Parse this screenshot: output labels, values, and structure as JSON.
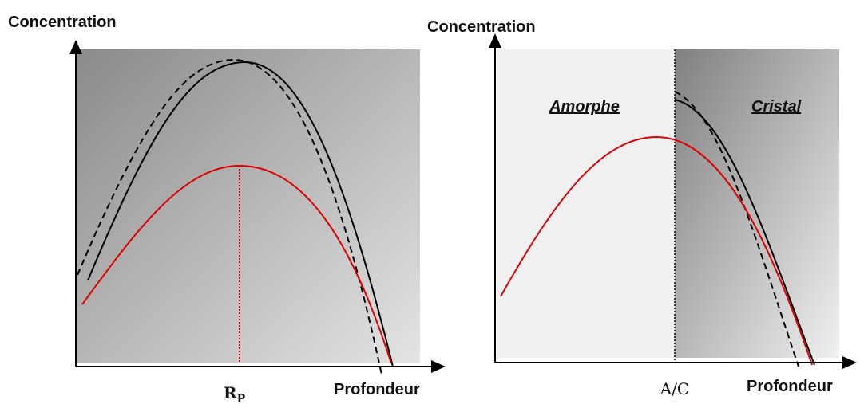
{
  "panels": [
    {
      "y_label": "Concentration",
      "marker": {
        "main": "R",
        "sub": "P"
      },
      "x_label": "Profondeur"
    },
    {
      "y_label": "Concentration",
      "regions": [
        "Amorphe",
        "Cristal"
      ],
      "marker": "A/C",
      "x_label": "Profondeur"
    }
  ]
}
